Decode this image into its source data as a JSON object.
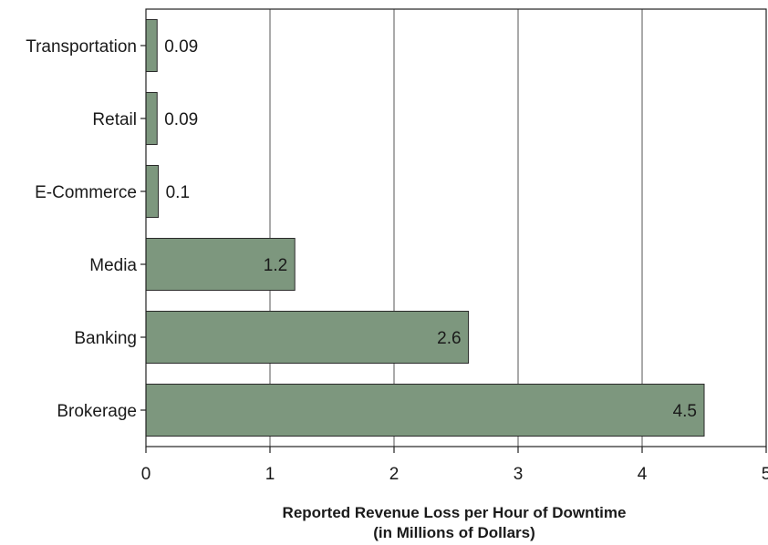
{
  "chart_data": {
    "type": "bar",
    "orientation": "horizontal",
    "categories": [
      "Transportation",
      "Retail",
      "E-Commerce",
      "Media",
      "Banking",
      "Brokerage"
    ],
    "values": [
      0.09,
      0.09,
      0.1,
      1.2,
      2.6,
      4.5
    ],
    "data_labels": [
      "0.09",
      "0.09",
      "0.1",
      "1.2",
      "2.6",
      "4.5"
    ],
    "xlabel": [
      "Reported Revenue Loss per Hour of Downtime",
      "(in Millions of Dollars)"
    ],
    "ylabel": "",
    "xlim": [
      0,
      5
    ],
    "xticks": [
      0,
      1,
      2,
      3,
      4,
      5
    ],
    "xtick_labels": [
      "0",
      "1",
      "2",
      "3",
      "4",
      "5"
    ],
    "grid": "vertical",
    "legend": "none",
    "colors": {
      "bar_fill": "#7d977e",
      "bar_stroke": "#2a2a2a",
      "grid": "#555555",
      "axis": "#222222"
    }
  }
}
